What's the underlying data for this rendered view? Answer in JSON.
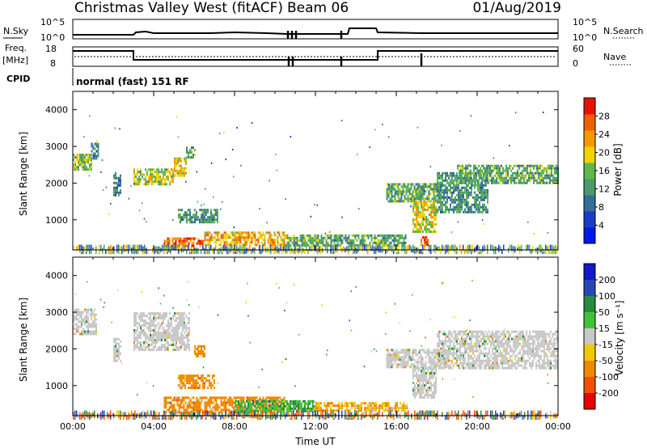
{
  "header": {
    "station": "Christmas Valley West (fitACF)",
    "beam": "Beam 06",
    "date": "01/Aug/2019"
  },
  "params": {
    "nsky_label": "N.Sky",
    "nsky_ticks": [
      "10^5",
      "10^0"
    ],
    "nsearch_label": "N.Search",
    "nsearch_ticks": [
      "10^5",
      "10^0"
    ],
    "freq_label_1": "Freq.",
    "freq_label_2": "[MHz]",
    "freq_ticks": [
      "18",
      "8"
    ],
    "nave_label": "Nave",
    "nave_ticks": [
      "60",
      "0"
    ],
    "cpid_label": "CPID",
    "cpid_text": "normal (fast) 151 RF"
  },
  "colors": {
    "power_scale": [
      "#0018e8",
      "#1a3cc8",
      "#356e98",
      "#4e9a6a",
      "#5cb84a",
      "#f2d200",
      "#f49a00",
      "#f06000",
      "#e81000"
    ],
    "velocity_scale": [
      "#1418c8",
      "#2a46b0",
      "#2a8a40",
      "#44c038",
      "#c8c8c8",
      "#f0c800",
      "#f08800",
      "#f05000",
      "#e80000"
    ]
  },
  "chart_data": [
    {
      "type": "heatmap",
      "name": "power",
      "ylabel": "Slant Range [km]",
      "xlabel": "",
      "yticks": [
        "1000",
        "2000",
        "3000",
        "4000"
      ],
      "ylim": [
        180,
        4500
      ],
      "xlim": [
        0,
        24
      ],
      "colorbar": {
        "label": "Power [dB]",
        "ticks": [
          "4",
          "8",
          "12",
          "16",
          "20",
          "24",
          "28"
        ],
        "range": [
          0,
          32
        ]
      },
      "regions": [
        {
          "t": [
            0.0,
            0.9
          ],
          "r": [
            2400,
            2800
          ],
          "level": 16
        },
        {
          "t": [
            0.9,
            1.3
          ],
          "r": [
            2700,
            3100
          ],
          "level": 10
        },
        {
          "t": [
            2.0,
            2.4
          ],
          "r": [
            1700,
            2300
          ],
          "level": 10
        },
        {
          "t": [
            3.0,
            5.0
          ],
          "r": [
            2000,
            2400
          ],
          "level": 18
        },
        {
          "t": [
            5.0,
            5.6
          ],
          "r": [
            2200,
            2700
          ],
          "level": 20
        },
        {
          "t": [
            5.6,
            6.0
          ],
          "r": [
            2700,
            3000
          ],
          "level": 14
        },
        {
          "t": [
            5.2,
            7.2
          ],
          "r": [
            950,
            1300
          ],
          "level": 12
        },
        {
          "t": [
            4.5,
            6.5
          ],
          "r": [
            280,
            520
          ],
          "level": 26
        },
        {
          "t": [
            6.5,
            10.5
          ],
          "r": [
            300,
            680
          ],
          "level": 22
        },
        {
          "t": [
            10.5,
            16.5
          ],
          "r": [
            300,
            600
          ],
          "level": 14
        },
        {
          "t": [
            15.5,
            18.3
          ],
          "r": [
            1500,
            2000
          ],
          "level": 14
        },
        {
          "t": [
            16.8,
            18.0
          ],
          "r": [
            700,
            1500
          ],
          "level": 20
        },
        {
          "t": [
            17.2,
            17.6
          ],
          "r": [
            350,
            550
          ],
          "level": 28
        },
        {
          "t": [
            18.0,
            20.5
          ],
          "r": [
            1200,
            2300
          ],
          "level": 12
        },
        {
          "t": [
            19.0,
            24.0
          ],
          "r": [
            2000,
            2500
          ],
          "level": 14
        }
      ]
    },
    {
      "type": "heatmap",
      "name": "velocity",
      "ylabel": "Slant Range [km]",
      "xlabel": "Time UT",
      "yticks": [
        "1000",
        "2000",
        "3000",
        "4000"
      ],
      "xticks": [
        "00:00",
        "04:00",
        "08:00",
        "12:00",
        "16:00",
        "20:00",
        "00:00"
      ],
      "ylim": [
        180,
        4500
      ],
      "xlim": [
        0,
        24
      ],
      "colorbar": {
        "label": "Velocity [m s⁻¹]",
        "ticks": [
          "200",
          "100",
          "50",
          "15",
          "-15",
          "-50",
          "-100",
          "-200"
        ],
        "range": [
          -250,
          250
        ]
      },
      "regions": [
        {
          "t": [
            0.0,
            1.2
          ],
          "r": [
            2400,
            3100
          ],
          "v": 0
        },
        {
          "t": [
            2.0,
            2.4
          ],
          "r": [
            1700,
            2300
          ],
          "v": 0
        },
        {
          "t": [
            3.0,
            5.8
          ],
          "r": [
            2000,
            3000
          ],
          "v": 0
        },
        {
          "t": [
            5.2,
            7.0
          ],
          "r": [
            950,
            1300
          ],
          "v": -50
        },
        {
          "t": [
            6.0,
            6.5
          ],
          "r": [
            1800,
            2100
          ],
          "v": -60
        },
        {
          "t": [
            4.5,
            10.5
          ],
          "r": [
            300,
            700
          ],
          "v": -60
        },
        {
          "t": [
            8.0,
            12.0
          ],
          "r": [
            300,
            600
          ],
          "v": 30
        },
        {
          "t": [
            12.0,
            16.5
          ],
          "r": [
            300,
            550
          ],
          "v": -30
        },
        {
          "t": [
            15.5,
            18.5
          ],
          "r": [
            1500,
            2000
          ],
          "v": 0
        },
        {
          "t": [
            16.8,
            18.0
          ],
          "r": [
            700,
            1500
          ],
          "v": 0
        },
        {
          "t": [
            18.0,
            24.0
          ],
          "r": [
            1500,
            2500
          ],
          "v": 0
        }
      ]
    }
  ]
}
